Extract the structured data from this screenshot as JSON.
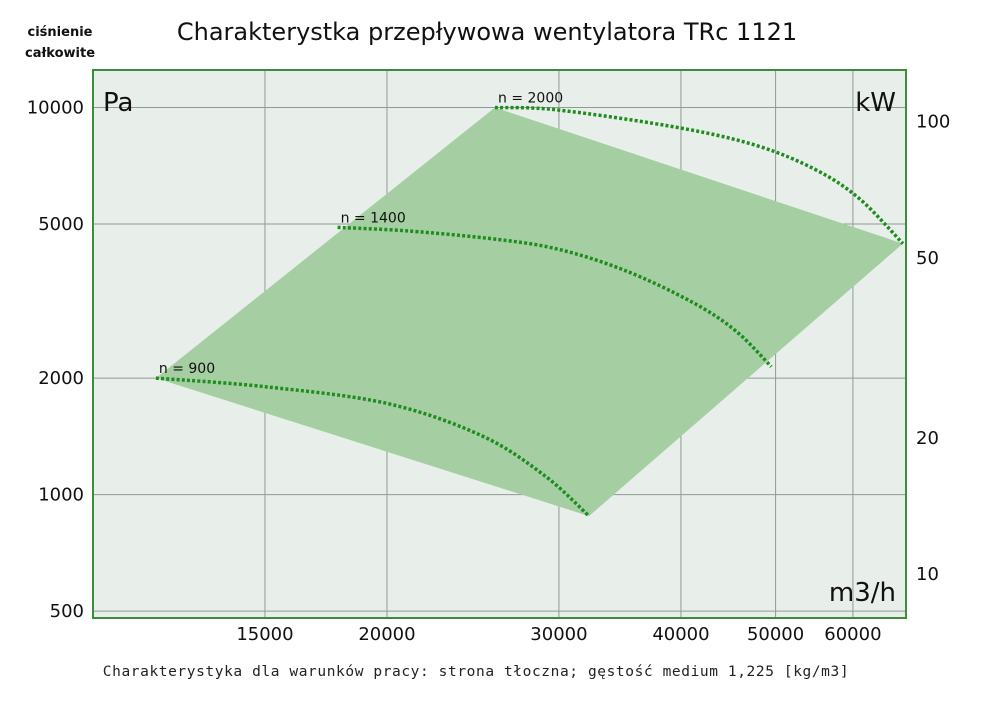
{
  "chart_data": {
    "type": "area",
    "title": "Charakterystka przepływowa wentylatora TRc 1121",
    "ylabel_lines": [
      "ciśnienie",
      "całkowite"
    ],
    "y_unit": "Pa",
    "x_unit": "m3/h",
    "y2_unit": "kW",
    "footnote": "Charakterystyka dla warunków pracy: strona tłoczna; gęstość medium 1,225 [kg/m3]",
    "x_scale": "log",
    "y_scale": "log",
    "y2_scale": "log",
    "xlim": [
      10000,
      68000
    ],
    "ylim": [
      480,
      12500
    ],
    "y2lim": [
      8,
      130
    ],
    "x_ticks": [
      15000,
      20000,
      30000,
      40000,
      50000,
      60000
    ],
    "x_tick_labels": [
      "15000",
      "20000",
      "30000",
      "40000",
      "50000",
      "60000"
    ],
    "y_ticks": [
      500,
      1000,
      2000,
      5000,
      10000
    ],
    "y_tick_labels": [
      "500",
      "1000",
      "2000",
      "5000",
      "10000"
    ],
    "y2_ticks": [
      10,
      20,
      50,
      100
    ],
    "y2_tick_labels": [
      "10",
      "20",
      "50",
      "100"
    ],
    "grid": true,
    "region_color": "#a5cfa3",
    "plot_bg": "#e8efea",
    "frame_color": "#3c8c3c",
    "curve_color": "#1e8c1e",
    "operating_region": [
      [
        11600,
        2000
      ],
      [
        25800,
        10000
      ],
      [
        67500,
        4450
      ],
      [
        32200,
        880
      ]
    ],
    "series": [
      {
        "name": "n = 900",
        "points": [
          [
            11600,
            2000
          ],
          [
            15000,
            1900
          ],
          [
            20000,
            1720
          ],
          [
            25000,
            1420
          ],
          [
            29000,
            1120
          ],
          [
            32200,
            880
          ]
        ]
      },
      {
        "name": "n = 1400",
        "points": [
          [
            17800,
            4900
          ],
          [
            21000,
            4800
          ],
          [
            26000,
            4560
          ],
          [
            30000,
            4300
          ],
          [
            35000,
            3800
          ],
          [
            41000,
            3150
          ],
          [
            45500,
            2650
          ],
          [
            49500,
            2140
          ]
        ]
      },
      {
        "name": "n = 2000",
        "points": [
          [
            25800,
            10000
          ],
          [
            30000,
            9850
          ],
          [
            40000,
            8850
          ],
          [
            48000,
            7950
          ],
          [
            55000,
            6900
          ],
          [
            61000,
            5800
          ],
          [
            67500,
            4450
          ]
        ]
      }
    ]
  }
}
